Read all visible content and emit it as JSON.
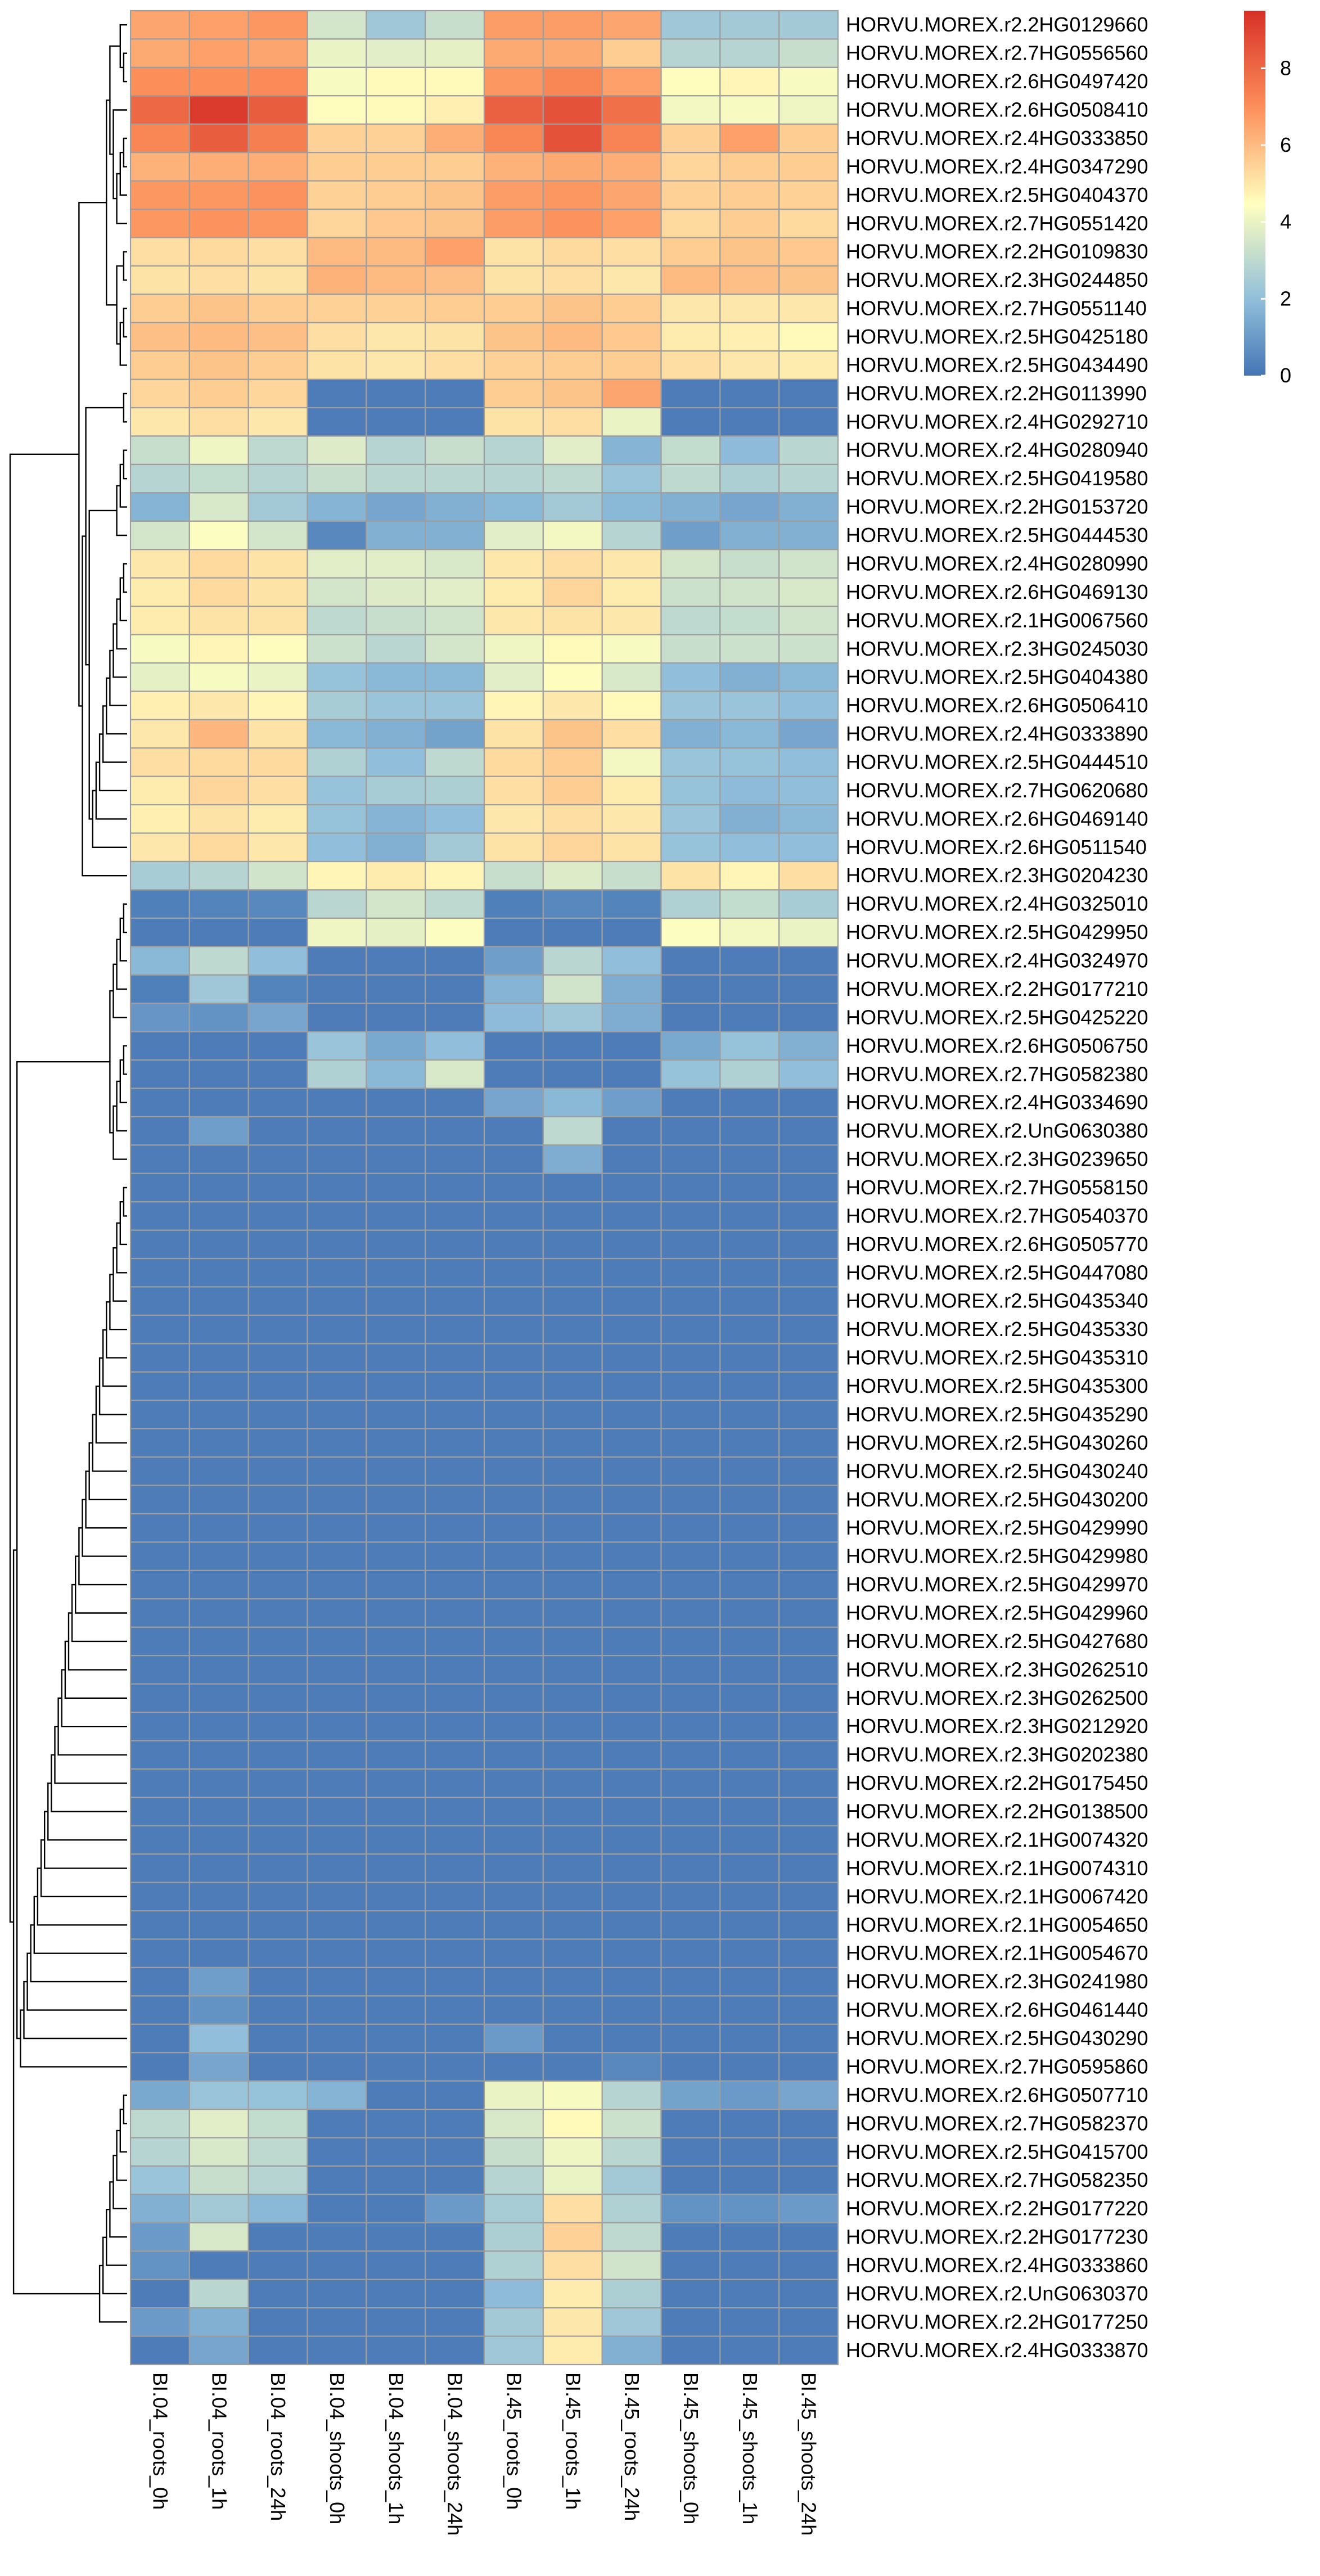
{
  "chart_data": {
    "type": "heatmap",
    "title": "",
    "xlabel": "",
    "ylabel": "",
    "columns": [
      "BI.04_roots_0h",
      "BI.04_roots_1h",
      "BI.04_roots_24h",
      "BI.04_shoots_0h",
      "BI.04_shoots_1h",
      "BI.04_shoots_24h",
      "BI.45_roots_0h",
      "BI.45_roots_1h",
      "BI.45_roots_24h",
      "BI.45_shoots_0h",
      "BI.45_shoots_1h",
      "BI.45_shoots_24h"
    ],
    "rows": [
      "HORVU.MOREX.r2.2HG0129660",
      "HORVU.MOREX.r2.7HG0556560",
      "HORVU.MOREX.r2.6HG0497420",
      "HORVU.MOREX.r2.6HG0508410",
      "HORVU.MOREX.r2.4HG0333850",
      "HORVU.MOREX.r2.4HG0347290",
      "HORVU.MOREX.r2.5HG0404370",
      "HORVU.MOREX.r2.7HG0551420",
      "HORVU.MOREX.r2.2HG0109830",
      "HORVU.MOREX.r2.3HG0244850",
      "HORVU.MOREX.r2.7HG0551140",
      "HORVU.MOREX.r2.5HG0425180",
      "HORVU.MOREX.r2.5HG0434490",
      "HORVU.MOREX.r2.2HG0113990",
      "HORVU.MOREX.r2.4HG0292710",
      "HORVU.MOREX.r2.4HG0280940",
      "HORVU.MOREX.r2.5HG0419580",
      "HORVU.MOREX.r2.2HG0153720",
      "HORVU.MOREX.r2.5HG0444530",
      "HORVU.MOREX.r2.4HG0280990",
      "HORVU.MOREX.r2.6HG0469130",
      "HORVU.MOREX.r2.1HG0067560",
      "HORVU.MOREX.r2.3HG0245030",
      "HORVU.MOREX.r2.5HG0404380",
      "HORVU.MOREX.r2.6HG0506410",
      "HORVU.MOREX.r2.4HG0333890",
      "HORVU.MOREX.r2.5HG0444510",
      "HORVU.MOREX.r2.7HG0620680",
      "HORVU.MOREX.r2.6HG0469140",
      "HORVU.MOREX.r2.6HG0511540",
      "HORVU.MOREX.r2.3HG0204230",
      "HORVU.MOREX.r2.4HG0325010",
      "HORVU.MOREX.r2.5HG0429950",
      "HORVU.MOREX.r2.4HG0324970",
      "HORVU.MOREX.r2.2HG0177210",
      "HORVU.MOREX.r2.5HG0425220",
      "HORVU.MOREX.r2.6HG0506750",
      "HORVU.MOREX.r2.7HG0582380",
      "HORVU.MOREX.r2.4HG0334690",
      "HORVU.MOREX.r2.UnG0630380",
      "HORVU.MOREX.r2.3HG0239650",
      "HORVU.MOREX.r2.7HG0558150",
      "HORVU.MOREX.r2.7HG0540370",
      "HORVU.MOREX.r2.6HG0505770",
      "HORVU.MOREX.r2.5HG0447080",
      "HORVU.MOREX.r2.5HG0435340",
      "HORVU.MOREX.r2.5HG0435330",
      "HORVU.MOREX.r2.5HG0435310",
      "HORVU.MOREX.r2.5HG0435300",
      "HORVU.MOREX.r2.5HG0435290",
      "HORVU.MOREX.r2.5HG0430260",
      "HORVU.MOREX.r2.5HG0430240",
      "HORVU.MOREX.r2.5HG0430200",
      "HORVU.MOREX.r2.5HG0429990",
      "HORVU.MOREX.r2.5HG0429980",
      "HORVU.MOREX.r2.5HG0429970",
      "HORVU.MOREX.r2.5HG0429960",
      "HORVU.MOREX.r2.5HG0427680",
      "HORVU.MOREX.r2.3HG0262510",
      "HORVU.MOREX.r2.3HG0262500",
      "HORVU.MOREX.r2.3HG0212920",
      "HORVU.MOREX.r2.3HG0202380",
      "HORVU.MOREX.r2.2HG0175450",
      "HORVU.MOREX.r2.2HG0138500",
      "HORVU.MOREX.r2.1HG0074320",
      "HORVU.MOREX.r2.1HG0074310",
      "HORVU.MOREX.r2.1HG0067420",
      "HORVU.MOREX.r2.1HG0054650",
      "HORVU.MOREX.r2.1HG0054670",
      "HORVU.MOREX.r2.3HG0241980",
      "HORVU.MOREX.r2.6HG0461440",
      "HORVU.MOREX.r2.5HG0430290",
      "HORVU.MOREX.r2.7HG0595860",
      "HORVU.MOREX.r2.6HG0507710",
      "HORVU.MOREX.r2.7HG0582370",
      "HORVU.MOREX.r2.5HG0415700",
      "HORVU.MOREX.r2.7HG0582350",
      "HORVU.MOREX.r2.2HG0177220",
      "HORVU.MOREX.r2.2HG0177230",
      "HORVU.MOREX.r2.4HG0333860",
      "HORVU.MOREX.r2.UnG0630370",
      "HORVU.MOREX.r2.2HG0177250",
      "HORVU.MOREX.r2.4HG0333870"
    ],
    "values": [
      [
        6.5,
        6.6,
        6.8,
        3.5,
        2.3,
        3.2,
        6.7,
        6.7,
        6.5,
        2.3,
        2.4,
        2.4
      ],
      [
        6.4,
        6.6,
        6.5,
        4.0,
        3.8,
        3.9,
        6.4,
        6.4,
        5.6,
        2.8,
        2.8,
        3.2
      ],
      [
        7.0,
        7.0,
        7.1,
        4.3,
        4.6,
        4.6,
        6.8,
        7.2,
        6.6,
        4.5,
        4.7,
        4.3
      ],
      [
        8.0,
        9.2,
        8.3,
        4.5,
        4.6,
        4.8,
        8.2,
        8.6,
        7.8,
        4.2,
        4.3,
        4.1
      ],
      [
        7.2,
        8.3,
        7.4,
        5.5,
        5.5,
        6.3,
        7.2,
        8.6,
        7.3,
        5.5,
        6.6,
        5.6
      ],
      [
        6.2,
        6.3,
        6.3,
        5.6,
        5.6,
        5.6,
        6.2,
        6.4,
        6.3,
        5.4,
        5.6,
        5.6
      ],
      [
        6.8,
        6.8,
        6.9,
        5.5,
        5.6,
        5.8,
        6.7,
        6.8,
        6.5,
        5.5,
        5.6,
        5.5
      ],
      [
        6.8,
        6.9,
        6.8,
        5.4,
        5.7,
        5.8,
        6.7,
        6.9,
        6.6,
        5.3,
        5.6,
        5.3
      ],
      [
        5.2,
        5.3,
        5.2,
        6.0,
        6.0,
        6.6,
        5.1,
        5.3,
        5.2,
        5.6,
        5.8,
        5.7
      ],
      [
        5.1,
        5.2,
        5.1,
        6.2,
        6.0,
        5.9,
        5.1,
        5.2,
        5.0,
        6.0,
        5.9,
        5.8
      ],
      [
        5.6,
        5.8,
        5.6,
        5.5,
        5.5,
        5.6,
        5.6,
        5.8,
        5.6,
        5.0,
        5.0,
        5.0
      ],
      [
        5.9,
        6.0,
        5.9,
        5.2,
        5.0,
        5.1,
        5.8,
        6.0,
        5.7,
        4.9,
        4.8,
        4.6
      ],
      [
        5.6,
        5.8,
        5.6,
        5.1,
        5.0,
        5.2,
        5.5,
        5.6,
        5.6,
        5.2,
        5.0,
        4.9
      ],
      [
        5.4,
        5.6,
        5.4,
        0.2,
        0.2,
        0.2,
        5.6,
        5.8,
        6.5,
        0.2,
        0.2,
        0.2
      ],
      [
        5.0,
        5.2,
        5.0,
        0.2,
        0.2,
        0.2,
        5.1,
        5.2,
        4.0,
        0.2,
        0.2,
        0.2
      ],
      [
        3.2,
        4.1,
        3.0,
        3.7,
        2.8,
        3.2,
        2.8,
        3.8,
        1.7,
        3.1,
        1.9,
        2.9
      ],
      [
        2.8,
        3.1,
        2.8,
        3.2,
        2.9,
        2.9,
        2.8,
        3.0,
        2.2,
        3.0,
        2.6,
        2.8
      ],
      [
        1.7,
        3.6,
        2.4,
        1.7,
        1.3,
        1.6,
        1.8,
        2.4,
        1.8,
        1.6,
        1.3,
        1.6
      ],
      [
        3.5,
        4.4,
        3.5,
        0.5,
        1.6,
        1.6,
        3.8,
        4.2,
        2.8,
        1.1,
        1.6,
        1.6
      ],
      [
        5.0,
        5.3,
        5.1,
        3.8,
        3.8,
        3.6,
        5.0,
        5.2,
        5.0,
        3.5,
        3.2,
        3.4
      ],
      [
        4.9,
        5.3,
        5.1,
        3.5,
        3.7,
        3.8,
        4.9,
        5.4,
        4.9,
        3.3,
        3.4,
        3.6
      ],
      [
        4.9,
        5.1,
        5.1,
        3.0,
        3.2,
        3.4,
        5.0,
        5.1,
        5.0,
        3.0,
        3.1,
        3.4
      ],
      [
        4.3,
        4.7,
        4.5,
        3.3,
        2.9,
        3.5,
        4.1,
        4.6,
        4.3,
        3.2,
        3.3,
        3.3
      ],
      [
        3.9,
        4.3,
        4.0,
        2.1,
        1.8,
        1.8,
        3.8,
        4.5,
        3.6,
        2.0,
        1.6,
        1.8
      ],
      [
        4.8,
        5.0,
        4.7,
        2.5,
        2.2,
        2.2,
        4.7,
        5.0,
        4.6,
        2.2,
        2.2,
        2.0
      ],
      [
        5.0,
        6.1,
        5.1,
        1.8,
        1.6,
        1.2,
        5.1,
        5.8,
        5.2,
        1.6,
        1.8,
        1.3
      ],
      [
        5.2,
        5.3,
        5.3,
        2.7,
        2.0,
        3.0,
        5.3,
        5.6,
        4.2,
        2.2,
        2.1,
        2.0
      ],
      [
        4.9,
        5.4,
        5.2,
        2.1,
        2.5,
        2.6,
        5.2,
        5.6,
        4.9,
        2.1,
        1.9,
        2.0
      ],
      [
        4.8,
        5.1,
        4.9,
        2.1,
        1.7,
        2.0,
        5.0,
        5.2,
        5.0,
        2.2,
        1.6,
        1.8
      ],
      [
        5.0,
        5.3,
        5.0,
        2.0,
        1.6,
        2.4,
        5.1,
        5.4,
        5.1,
        2.1,
        2.0,
        2.0
      ],
      [
        2.5,
        2.8,
        3.4,
        4.7,
        4.9,
        4.7,
        3.2,
        3.7,
        3.2,
        5.1,
        4.7,
        5.2
      ],
      [
        0.3,
        0.4,
        0.5,
        2.9,
        3.5,
        3.0,
        0.3,
        0.5,
        0.4,
        2.7,
        3.1,
        2.5
      ],
      [
        0.2,
        0.2,
        0.2,
        4.1,
        3.9,
        4.4,
        0.2,
        0.2,
        0.2,
        4.4,
        4.2,
        4.0
      ],
      [
        1.8,
        3.0,
        2.0,
        0.2,
        0.2,
        0.2,
        1.1,
        2.9,
        2.0,
        0.2,
        0.2,
        0.2
      ],
      [
        0.3,
        2.3,
        0.4,
        0.2,
        0.2,
        0.2,
        1.7,
        3.4,
        1.5,
        0.2,
        0.2,
        0.2
      ],
      [
        0.9,
        0.8,
        1.3,
        0.2,
        0.2,
        0.2,
        1.9,
        2.3,
        1.5,
        0.2,
        0.2,
        0.2
      ],
      [
        0.2,
        0.2,
        0.2,
        2.2,
        1.4,
        2.0,
        0.2,
        0.2,
        0.2,
        1.4,
        2.1,
        1.6
      ],
      [
        0.2,
        0.2,
        0.2,
        2.7,
        1.8,
        3.6,
        0.2,
        0.2,
        0.2,
        2.1,
        2.7,
        2.0
      ],
      [
        0.2,
        0.2,
        0.2,
        0.2,
        0.2,
        0.2,
        1.3,
        1.8,
        1.1,
        0.2,
        0.2,
        0.2
      ],
      [
        0.2,
        1.1,
        0.2,
        0.2,
        0.2,
        0.2,
        0.2,
        3.0,
        0.2,
        0.2,
        0.2,
        0.2
      ],
      [
        0.2,
        0.2,
        0.2,
        0.2,
        0.2,
        0.2,
        0.2,
        1.5,
        0.2,
        0.2,
        0.2,
        0.2
      ],
      [
        0.2,
        0.2,
        0.2,
        0.2,
        0.2,
        0.2,
        0.2,
        0.2,
        0.2,
        0.2,
        0.2,
        0.2
      ],
      [
        0.2,
        0.2,
        0.2,
        0.2,
        0.2,
        0.2,
        0.2,
        0.2,
        0.2,
        0.2,
        0.2,
        0.2
      ],
      [
        0.2,
        0.2,
        0.2,
        0.2,
        0.2,
        0.2,
        0.2,
        0.2,
        0.2,
        0.2,
        0.2,
        0.2
      ],
      [
        0.2,
        0.2,
        0.2,
        0.2,
        0.2,
        0.2,
        0.2,
        0.2,
        0.2,
        0.2,
        0.2,
        0.2
      ],
      [
        0.2,
        0.2,
        0.2,
        0.2,
        0.2,
        0.2,
        0.2,
        0.2,
        0.2,
        0.2,
        0.2,
        0.2
      ],
      [
        0.2,
        0.2,
        0.2,
        0.2,
        0.2,
        0.2,
        0.2,
        0.2,
        0.2,
        0.2,
        0.2,
        0.2
      ],
      [
        0.2,
        0.2,
        0.2,
        0.2,
        0.2,
        0.2,
        0.2,
        0.2,
        0.2,
        0.2,
        0.2,
        0.2
      ],
      [
        0.2,
        0.2,
        0.2,
        0.2,
        0.2,
        0.2,
        0.2,
        0.2,
        0.2,
        0.2,
        0.2,
        0.2
      ],
      [
        0.2,
        0.2,
        0.2,
        0.2,
        0.2,
        0.2,
        0.2,
        0.2,
        0.2,
        0.2,
        0.2,
        0.2
      ],
      [
        0.2,
        0.2,
        0.2,
        0.2,
        0.2,
        0.2,
        0.2,
        0.2,
        0.2,
        0.2,
        0.2,
        0.2
      ],
      [
        0.2,
        0.2,
        0.2,
        0.2,
        0.2,
        0.2,
        0.2,
        0.2,
        0.2,
        0.2,
        0.2,
        0.2
      ],
      [
        0.2,
        0.2,
        0.2,
        0.2,
        0.2,
        0.2,
        0.2,
        0.2,
        0.2,
        0.2,
        0.2,
        0.2
      ],
      [
        0.2,
        0.2,
        0.2,
        0.2,
        0.2,
        0.2,
        0.2,
        0.2,
        0.2,
        0.2,
        0.2,
        0.2
      ],
      [
        0.2,
        0.2,
        0.2,
        0.2,
        0.2,
        0.2,
        0.2,
        0.2,
        0.2,
        0.2,
        0.2,
        0.2
      ],
      [
        0.2,
        0.2,
        0.2,
        0.2,
        0.2,
        0.2,
        0.2,
        0.2,
        0.2,
        0.2,
        0.2,
        0.2
      ],
      [
        0.2,
        0.2,
        0.2,
        0.2,
        0.2,
        0.2,
        0.2,
        0.2,
        0.2,
        0.2,
        0.2,
        0.2
      ],
      [
        0.2,
        0.2,
        0.2,
        0.2,
        0.2,
        0.2,
        0.2,
        0.2,
        0.2,
        0.2,
        0.2,
        0.2
      ],
      [
        0.2,
        0.2,
        0.2,
        0.2,
        0.2,
        0.2,
        0.2,
        0.2,
        0.2,
        0.2,
        0.2,
        0.2
      ],
      [
        0.2,
        0.2,
        0.2,
        0.2,
        0.2,
        0.2,
        0.2,
        0.2,
        0.2,
        0.2,
        0.2,
        0.2
      ],
      [
        0.2,
        0.2,
        0.2,
        0.2,
        0.2,
        0.2,
        0.2,
        0.2,
        0.2,
        0.2,
        0.2,
        0.2
      ],
      [
        0.2,
        0.2,
        0.2,
        0.2,
        0.2,
        0.2,
        0.2,
        0.2,
        0.2,
        0.2,
        0.2,
        0.2
      ],
      [
        0.2,
        0.2,
        0.2,
        0.2,
        0.2,
        0.2,
        0.2,
        0.2,
        0.2,
        0.2,
        0.2,
        0.2
      ],
      [
        0.2,
        0.2,
        0.2,
        0.2,
        0.2,
        0.2,
        0.2,
        0.2,
        0.2,
        0.2,
        0.2,
        0.2
      ],
      [
        0.2,
        0.2,
        0.2,
        0.2,
        0.2,
        0.2,
        0.2,
        0.2,
        0.2,
        0.2,
        0.2,
        0.2
      ],
      [
        0.2,
        0.2,
        0.2,
        0.2,
        0.2,
        0.2,
        0.2,
        0.2,
        0.2,
        0.2,
        0.2,
        0.2
      ],
      [
        0.2,
        0.2,
        0.2,
        0.2,
        0.2,
        0.2,
        0.2,
        0.2,
        0.2,
        0.2,
        0.2,
        0.2
      ],
      [
        0.2,
        0.2,
        0.2,
        0.2,
        0.2,
        0.2,
        0.2,
        0.2,
        0.2,
        0.2,
        0.2,
        0.2
      ],
      [
        0.2,
        0.2,
        0.2,
        0.2,
        0.2,
        0.2,
        0.2,
        0.2,
        0.2,
        0.2,
        0.2,
        0.2
      ],
      [
        0.2,
        1.1,
        0.2,
        0.2,
        0.2,
        0.2,
        0.2,
        0.2,
        0.2,
        0.2,
        0.2,
        0.2
      ],
      [
        0.2,
        0.8,
        0.2,
        0.2,
        0.2,
        0.2,
        0.2,
        0.2,
        0.2,
        0.2,
        0.2,
        0.2
      ],
      [
        0.2,
        2.0,
        0.2,
        0.2,
        0.2,
        0.2,
        1.0,
        0.2,
        0.2,
        0.2,
        0.2,
        0.2
      ],
      [
        0.2,
        1.3,
        0.2,
        0.2,
        0.2,
        0.2,
        0.2,
        0.2,
        0.5,
        0.2,
        0.2,
        0.2
      ],
      [
        1.4,
        2.2,
        2.1,
        1.7,
        0.2,
        0.2,
        4.0,
        4.3,
        2.8,
        1.2,
        1.0,
        1.3
      ],
      [
        3.0,
        3.8,
        3.1,
        0.2,
        0.2,
        0.2,
        3.6,
        4.6,
        3.3,
        0.2,
        0.2,
        0.2
      ],
      [
        2.8,
        3.6,
        3.0,
        0.2,
        0.2,
        0.2,
        3.2,
        4.1,
        2.9,
        0.2,
        0.2,
        0.2
      ],
      [
        2.2,
        3.2,
        2.8,
        0.2,
        0.2,
        0.2,
        2.8,
        4.0,
        2.4,
        0.2,
        0.2,
        0.2
      ],
      [
        1.6,
        2.4,
        1.8,
        0.2,
        0.2,
        1.0,
        2.5,
        5.2,
        2.7,
        0.8,
        0.8,
        1.0
      ],
      [
        1.0,
        3.6,
        0.2,
        0.2,
        0.2,
        0.2,
        2.6,
        5.5,
        3.0,
        0.2,
        0.2,
        0.2
      ],
      [
        0.8,
        0.2,
        0.2,
        0.2,
        0.2,
        0.2,
        2.7,
        5.2,
        3.4,
        0.2,
        0.2,
        0.2
      ],
      [
        0.2,
        2.9,
        0.2,
        0.2,
        0.2,
        0.2,
        1.9,
        4.9,
        2.6,
        0.2,
        0.2,
        0.2
      ],
      [
        1.0,
        1.6,
        0.2,
        0.2,
        0.2,
        0.2,
        2.4,
        5.0,
        2.3,
        0.2,
        0.2,
        0.2
      ],
      [
        0.2,
        1.3,
        0.2,
        0.2,
        0.2,
        0.2,
        2.3,
        4.9,
        1.6,
        0.2,
        0.2,
        0.2
      ]
    ],
    "range": [
      0,
      9.5
    ],
    "colorbar": {
      "ticks": [
        0,
        2,
        4,
        6,
        8
      ]
    },
    "colors": {
      "low": "#4575B4",
      "mid": "#FFFFBF",
      "high": "#D73027",
      "cell_border": "#9E9E9E"
    },
    "row_dendrogram": "shown",
    "legend_position": "top-right",
    "grid": false
  }
}
